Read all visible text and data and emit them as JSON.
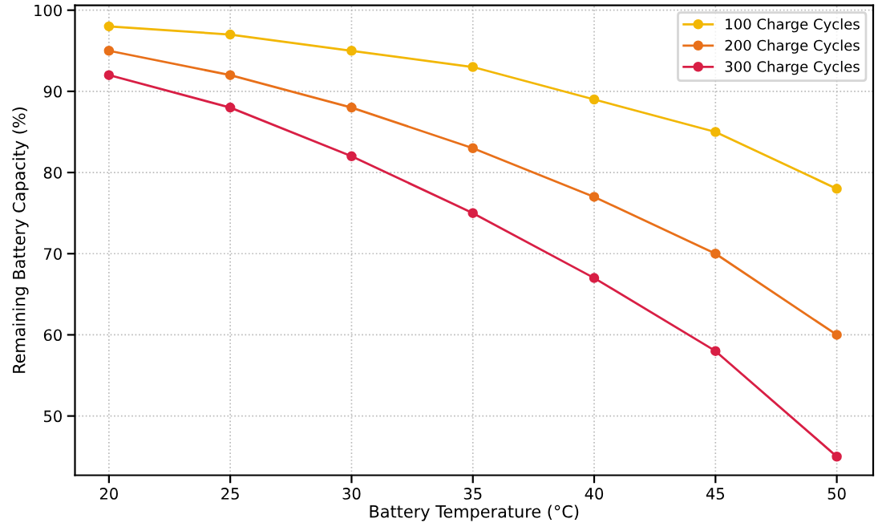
{
  "chart_data": {
    "type": "line",
    "xlabel": "Battery Temperature (°C)",
    "ylabel": "Remaining Battery Capacity (%)",
    "x": [
      20,
      25,
      30,
      35,
      40,
      45,
      50
    ],
    "series": [
      {
        "name": "100 Charge Cycles",
        "color": "#f2b705",
        "values": [
          98,
          97,
          95,
          93,
          89,
          85,
          78
        ]
      },
      {
        "name": "200 Charge Cycles",
        "color": "#e8701a",
        "values": [
          95,
          92,
          88,
          83,
          77,
          70,
          60
        ]
      },
      {
        "name": "300 Charge Cycles",
        "color": "#d81f45",
        "values": [
          92,
          88,
          82,
          75,
          67,
          58,
          45
        ]
      }
    ],
    "xlim": [
      18.6,
      51.5
    ],
    "ylim": [
      42.7,
      100.6
    ],
    "xticks": [
      20,
      25,
      30,
      35,
      40,
      45,
      50
    ],
    "yticks": [
      50,
      60,
      70,
      80,
      90,
      100
    ],
    "grid": true,
    "legend": "top right",
    "marker": "circle",
    "line_style": "solid"
  }
}
